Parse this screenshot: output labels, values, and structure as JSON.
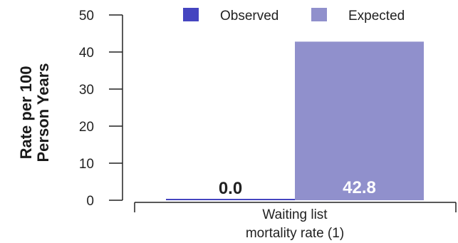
{
  "chart_data": {
    "type": "bar",
    "categories": [
      "Waiting list mortality rate (1)"
    ],
    "category_lines": [
      [
        "Waiting list",
        "mortality rate (1)"
      ]
    ],
    "series": [
      {
        "name": "Observed",
        "values": [
          0.0
        ],
        "labels": [
          "0.0"
        ],
        "color": "#4545c0"
      },
      {
        "name": "Expected",
        "values": [
          42.8
        ],
        "labels": [
          "42.8"
        ],
        "color": "#9090cc"
      }
    ],
    "ylabel_lines": [
      "Rate per 100",
      "Person Years"
    ],
    "ylim": [
      0,
      50
    ],
    "yticks": [
      0,
      10,
      20,
      30,
      40,
      50
    ],
    "grid": false,
    "legend_position": "top"
  }
}
